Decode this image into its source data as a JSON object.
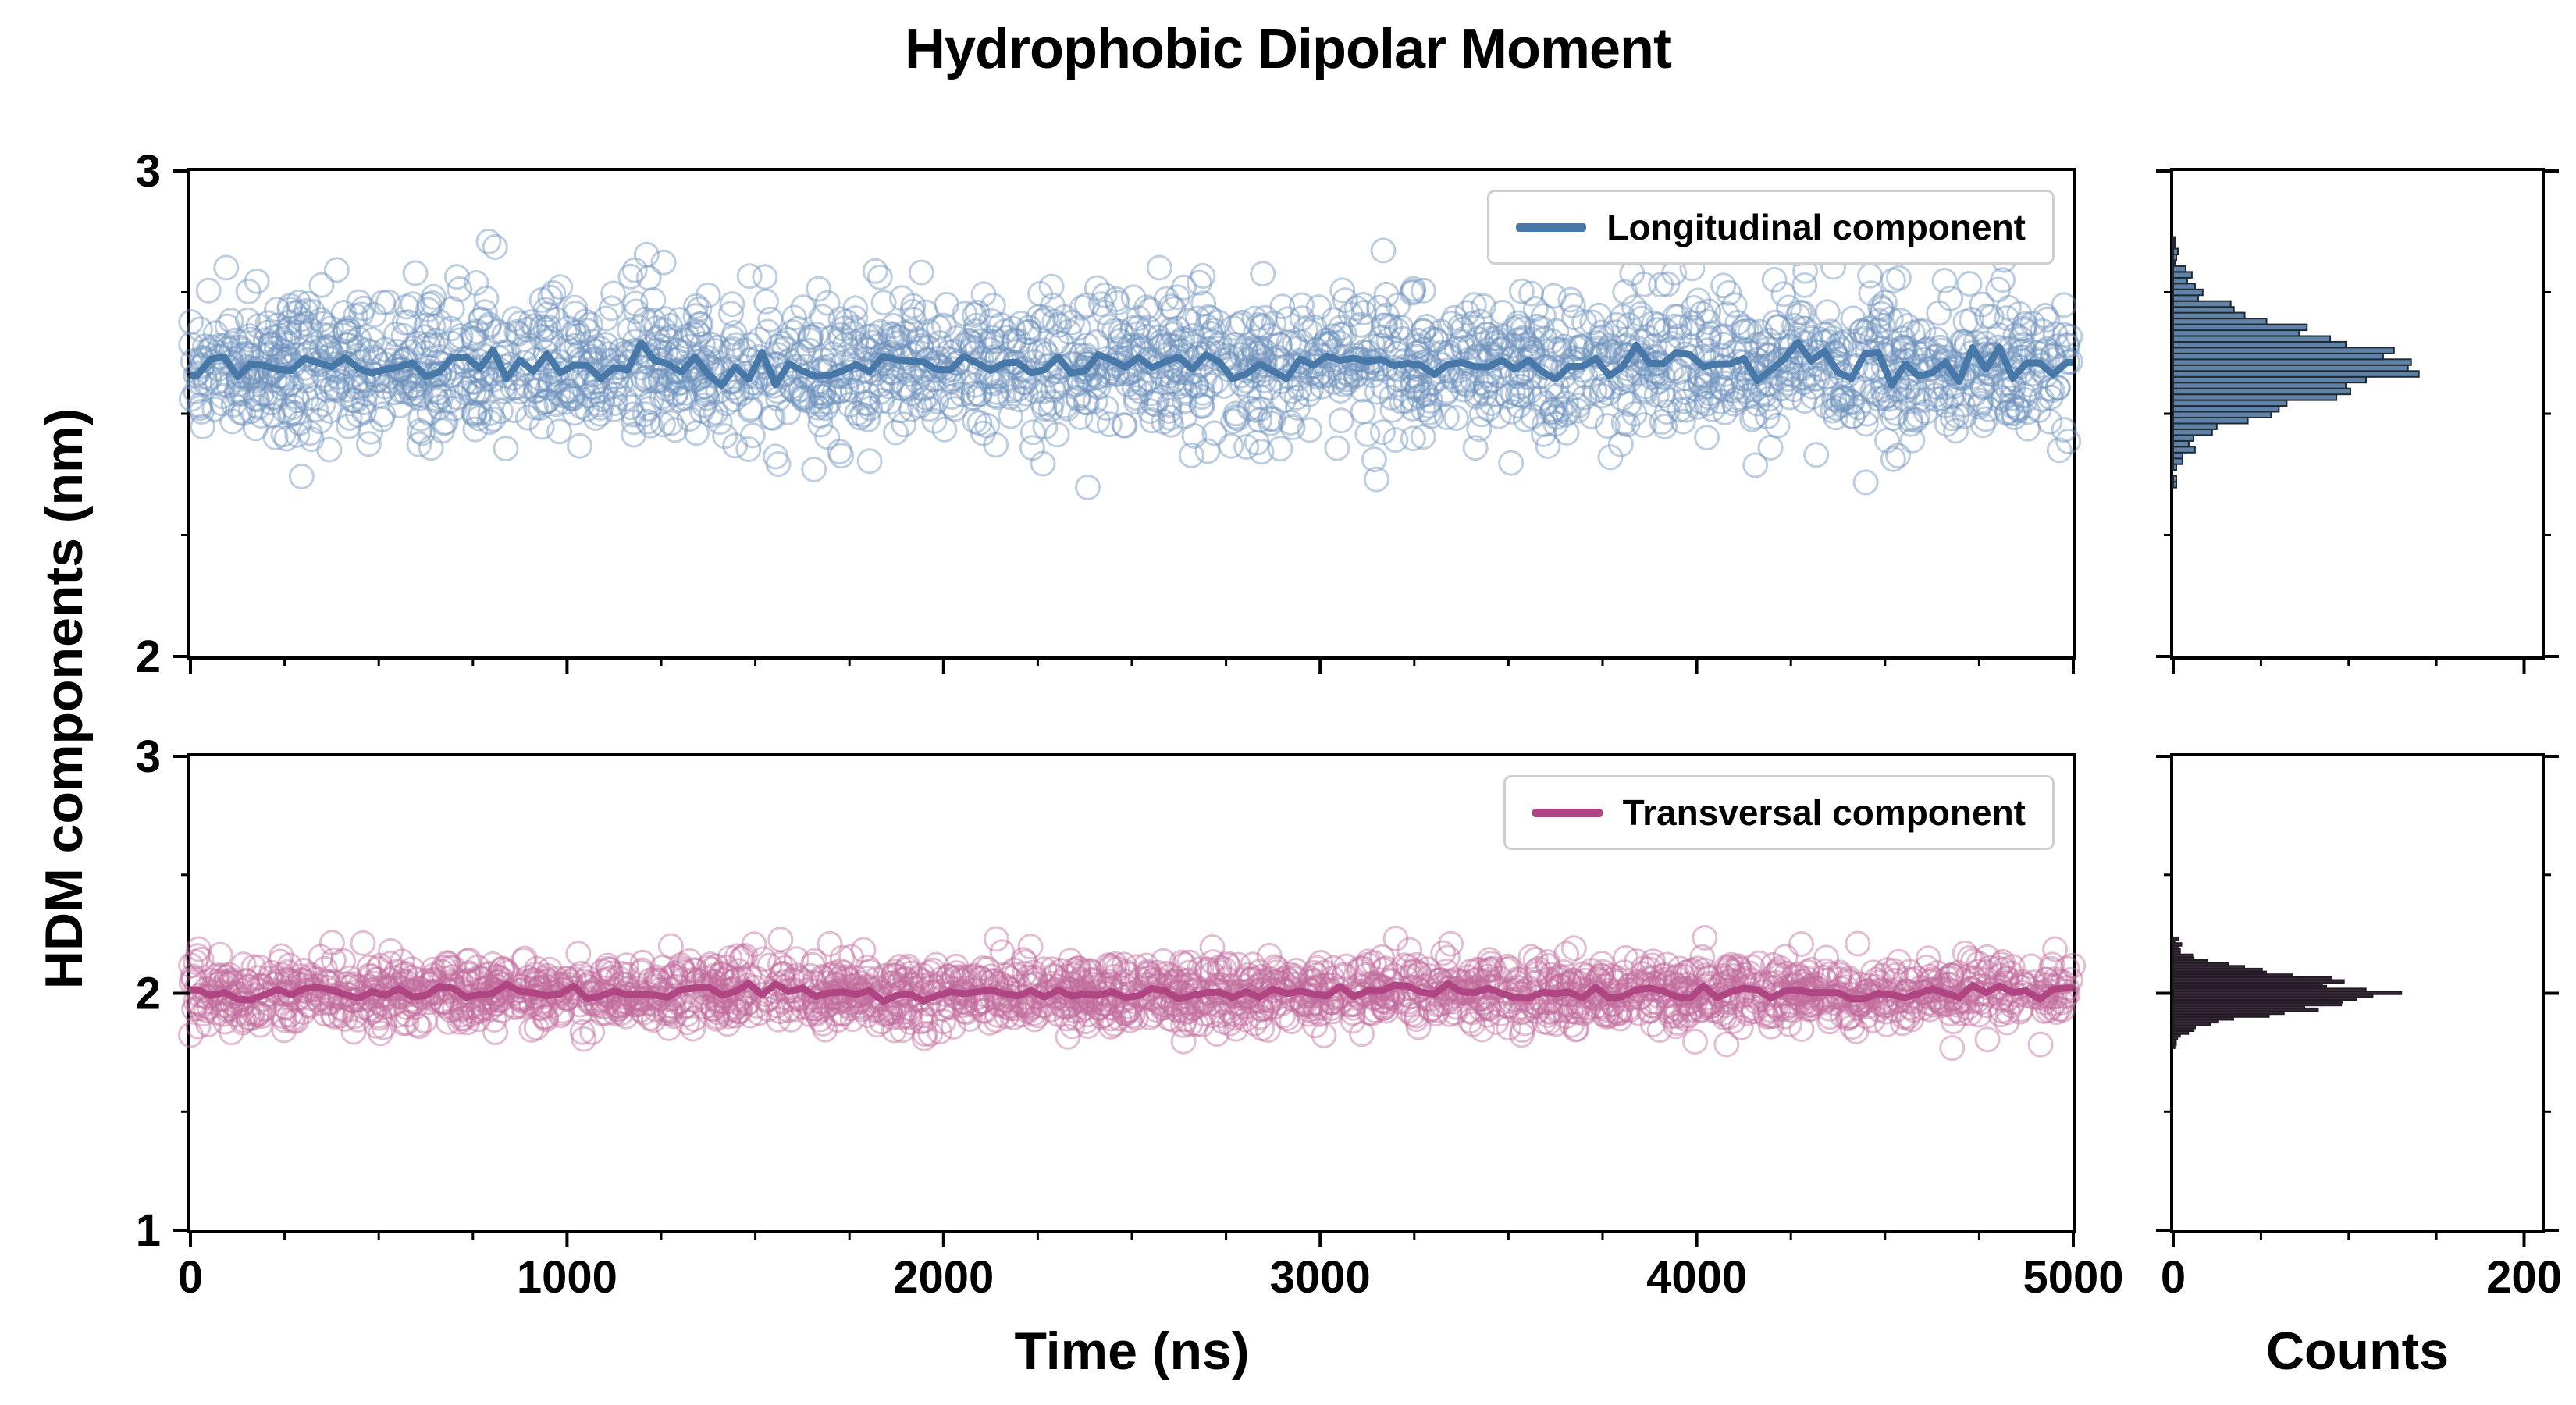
{
  "chart_data": {
    "type": "scatter",
    "title": "Hydrophobic Dipolar Moment",
    "xlabel": "Time (ns)",
    "ylabel": "HDM components (nm)",
    "counts_xlabel": "Counts",
    "x_range_ns": [
      0,
      5000
    ],
    "x_ticks": [
      0,
      1000,
      2000,
      3000,
      4000,
      5000
    ],
    "counts_axis_max": 210,
    "counts_ticks": [
      0,
      200
    ],
    "legend_position": "upper right",
    "grid": false,
    "panels": [
      {
        "name": "longitudinal",
        "legend": "Longitudinal component",
        "y_range": [
          2,
          3
        ],
        "y_ticks": [
          2,
          3
        ],
        "mean_nm": 2.6,
        "std_nm": 0.075,
        "n_points_approx": 2200,
        "hist_peak_counts": 140,
        "scatter_color": "#6e93bd",
        "line_color": "#4878a8",
        "hist_fill": "#5f82a6",
        "hist_edge": "#1e2a36"
      },
      {
        "name": "transversal",
        "legend": "Transversal component",
        "y_range": [
          1,
          3
        ],
        "y_ticks": [
          1,
          2,
          3
        ],
        "mean_nm": 2.0,
        "std_nm": 0.07,
        "n_points_approx": 2200,
        "hist_peak_counts": 130,
        "scatter_color": "#c26d9e",
        "line_color": "#b04583",
        "hist_fill": "#382c39",
        "hist_edge": "#221a24"
      }
    ]
  }
}
